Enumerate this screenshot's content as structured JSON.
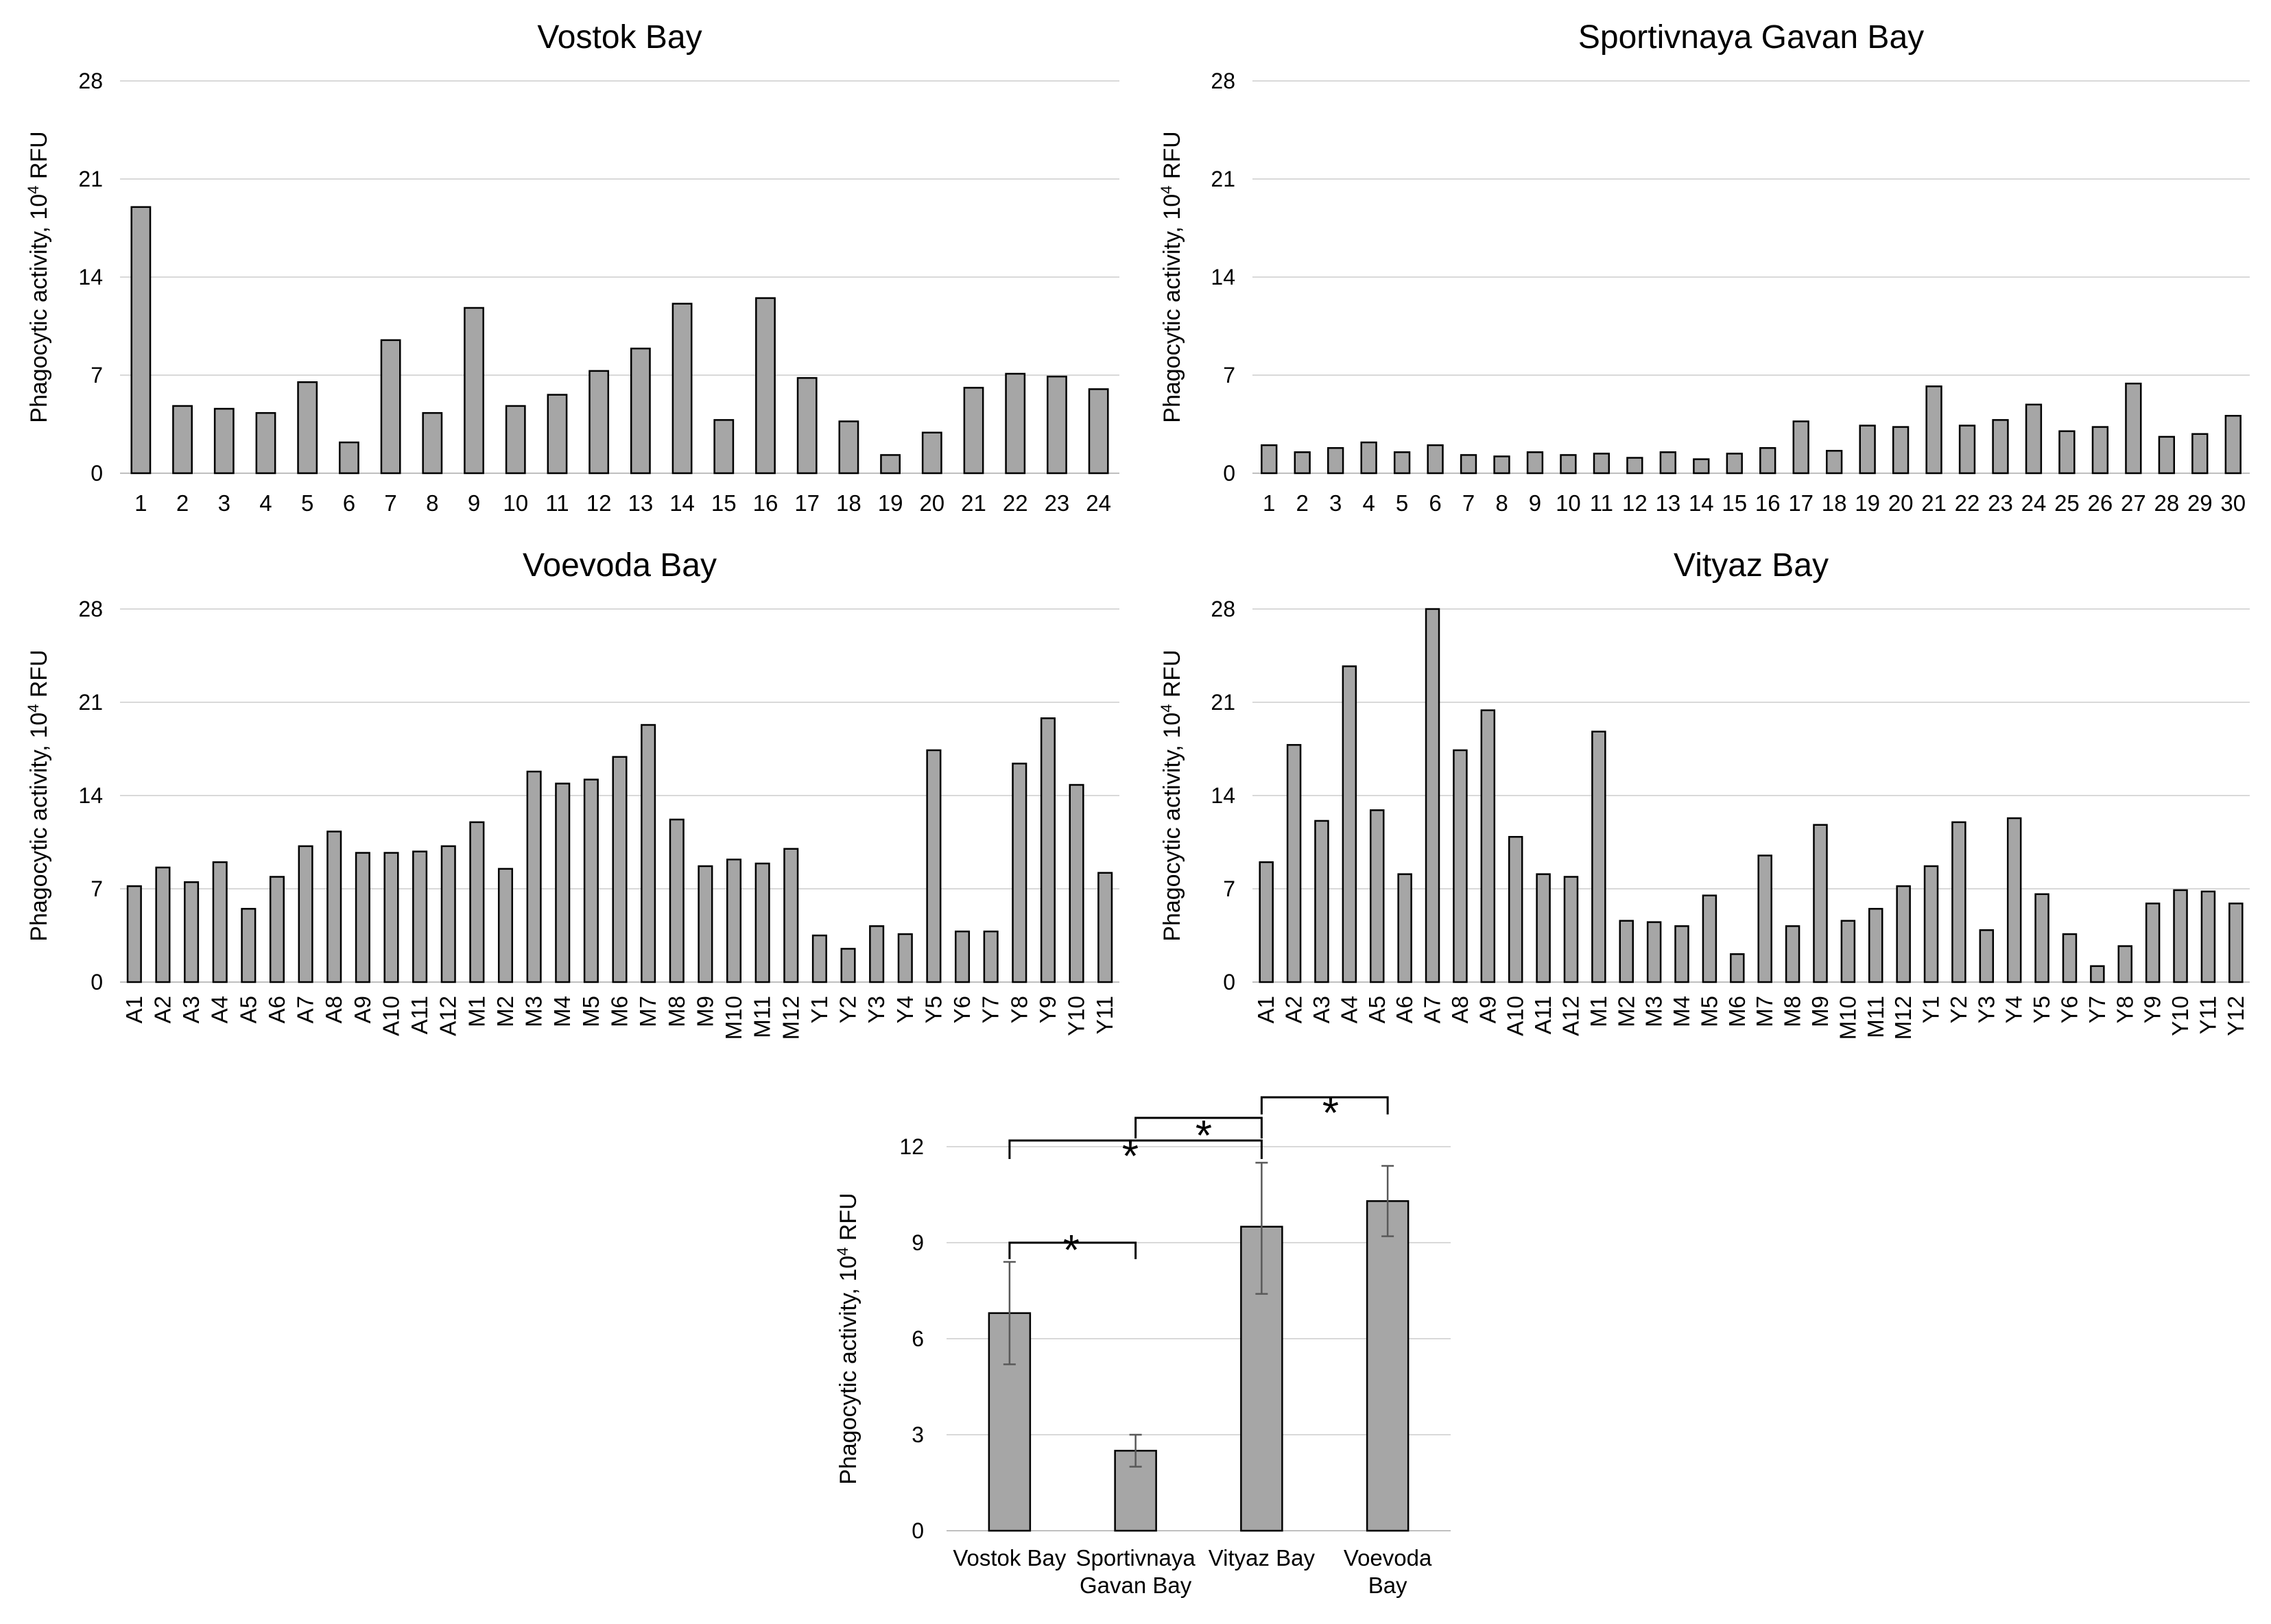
{
  "chart_data": [
    {
      "id": "vostok",
      "type": "bar",
      "title": "Vostok Bay",
      "ylabel_main": "Phagocytic activity, 10",
      "ylabel_sup": "4",
      "ylabel_tail": " RFU",
      "ylim": [
        0,
        28
      ],
      "yticks": [
        0,
        7,
        14,
        21,
        28
      ],
      "categories": [
        "1",
        "2",
        "3",
        "4",
        "5",
        "6",
        "7",
        "8",
        "9",
        "10",
        "11",
        "12",
        "13",
        "14",
        "15",
        "16",
        "17",
        "18",
        "19",
        "20",
        "21",
        "22",
        "23",
        "24"
      ],
      "values": [
        19,
        4.8,
        4.6,
        4.3,
        6.5,
        2.2,
        9.5,
        4.3,
        11.8,
        4.8,
        5.6,
        7.3,
        8.9,
        12.1,
        3.8,
        12.5,
        6.8,
        3.7,
        1.3,
        2.9,
        6.1,
        7.1,
        6.9,
        6.0
      ],
      "xlabel": "",
      "rotate_labels": false
    },
    {
      "id": "sportivnaya",
      "type": "bar",
      "title": "Sportivnaya Gavan Bay",
      "ylabel_main": "Phagocytic activity, 10",
      "ylabel_sup": "4",
      "ylabel_tail": " RFU",
      "ylim": [
        0,
        28
      ],
      "yticks": [
        0,
        7,
        14,
        21,
        28
      ],
      "categories": [
        "1",
        "2",
        "3",
        "4",
        "5",
        "6",
        "7",
        "8",
        "9",
        "10",
        "11",
        "12",
        "13",
        "14",
        "15",
        "16",
        "17",
        "18",
        "19",
        "20",
        "21",
        "22",
        "23",
        "24",
        "25",
        "26",
        "27",
        "28",
        "29",
        "30"
      ],
      "values": [
        2.0,
        1.5,
        1.8,
        2.2,
        1.5,
        2.0,
        1.3,
        1.2,
        1.5,
        1.3,
        1.4,
        1.1,
        1.5,
        1.0,
        1.4,
        1.8,
        3.7,
        1.6,
        3.4,
        3.3,
        6.2,
        3.4,
        3.8,
        4.9,
        3.0,
        3.3,
        6.4,
        2.6,
        2.8,
        4.1
      ],
      "xlabel": "",
      "rotate_labels": false
    },
    {
      "id": "voevoda",
      "type": "bar",
      "title": "Voevoda Bay",
      "ylabel_main": "Phagocytic activity, 10",
      "ylabel_sup": "4",
      "ylabel_tail": " RFU",
      "ylim": [
        0,
        28
      ],
      "yticks": [
        0,
        7,
        14,
        21,
        28
      ],
      "categories": [
        "A1",
        "A2",
        "A3",
        "A4",
        "A5",
        "A6",
        "A7",
        "A8",
        "A9",
        "A10",
        "A11",
        "A12",
        "M1",
        "M2",
        "M3",
        "M4",
        "M5",
        "M6",
        "M7",
        "M8",
        "M9",
        "M10",
        "M11",
        "M12",
        "Y1",
        "Y2",
        "Y3",
        "Y4",
        "Y5",
        "Y6",
        "Y7",
        "Y8",
        "Y9",
        "Y10",
        "Y11"
      ],
      "values": [
        7.2,
        8.6,
        7.5,
        9.0,
        5.5,
        7.9,
        10.2,
        11.3,
        9.7,
        9.7,
        9.8,
        10.2,
        12.0,
        8.5,
        15.8,
        14.9,
        15.2,
        16.9,
        19.3,
        12.2,
        8.7,
        9.2,
        8.9,
        10.0,
        3.5,
        2.5,
        4.2,
        3.6,
        17.4,
        3.8,
        3.8,
        16.4,
        19.8,
        14.8,
        8.2
      ],
      "xlabel": "",
      "rotate_labels": true
    },
    {
      "id": "vityaz",
      "type": "bar",
      "title": "Vityaz Bay",
      "ylabel_main": "Phagocytic activity, 10",
      "ylabel_sup": "4",
      "ylabel_tail": " RFU",
      "ylim": [
        0,
        28
      ],
      "yticks": [
        0,
        7,
        14,
        21,
        28
      ],
      "categories": [
        "A1",
        "A2",
        "A3",
        "A4",
        "A5",
        "A6",
        "A7",
        "A8",
        "A9",
        "A10",
        "A11",
        "A12",
        "M1",
        "M2",
        "M3",
        "M4",
        "M5",
        "M6",
        "M7",
        "M8",
        "M9",
        "M10",
        "M11",
        "M12",
        "Y1",
        "Y2",
        "Y3",
        "Y4",
        "Y5",
        "Y6",
        "Y7",
        "Y8",
        "Y9",
        "Y10",
        "Y11",
        "Y12"
      ],
      "values": [
        9.0,
        17.8,
        12.1,
        23.7,
        12.9,
        8.1,
        28.0,
        17.4,
        20.4,
        10.9,
        8.1,
        7.9,
        18.8,
        4.6,
        4.5,
        4.2,
        6.5,
        2.1,
        9.5,
        4.2,
        11.8,
        4.6,
        5.5,
        7.2,
        8.7,
        12.0,
        3.9,
        12.3,
        6.6,
        3.6,
        1.2,
        2.7,
        5.9,
        6.9,
        6.8,
        5.9
      ],
      "xlabel": "",
      "rotate_labels": true
    },
    {
      "id": "summary",
      "type": "bar",
      "title": "",
      "ylabel_main": "Phagocytic activity, 10",
      "ylabel_sup": "4",
      "ylabel_tail": " RFU",
      "ylim": [
        0,
        12
      ],
      "yticks": [
        0,
        3,
        6,
        9,
        12
      ],
      "categories": [
        [
          "Vostok Bay"
        ],
        [
          "Sportivnaya",
          "Gavan Bay"
        ],
        [
          "Vityaz Bay"
        ],
        [
          "Voevoda",
          "Bay"
        ]
      ],
      "values": [
        6.8,
        2.5,
        9.5,
        10.3
      ],
      "error_low": [
        5.2,
        2.0,
        7.4,
        9.2
      ],
      "error_high": [
        8.4,
        3.0,
        11.5,
        11.4
      ],
      "significance": [
        {
          "from": 0,
          "to": 1,
          "label": "*"
        },
        {
          "from": 0,
          "to": 2,
          "label": "*"
        },
        {
          "from": 1,
          "to": 2,
          "label": "*"
        },
        {
          "from": 2,
          "to": 3,
          "label": "*"
        }
      ],
      "xlabel": ""
    }
  ],
  "style": {
    "bar_fill": "#a6a6a6",
    "bar_stroke": "#000000",
    "grid_color": "#d9d9d9",
    "axis_color": "#bfbfbf",
    "error_color": "#595959"
  }
}
